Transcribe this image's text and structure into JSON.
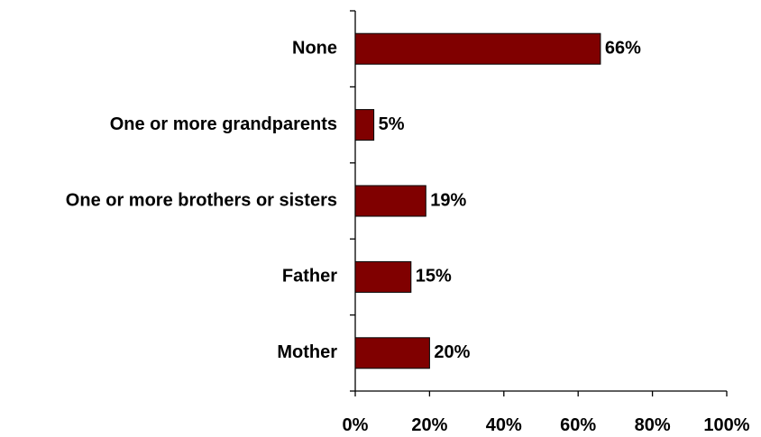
{
  "chart_data": {
    "type": "bar",
    "orientation": "horizontal",
    "categories": [
      "None",
      "One or more grandparents",
      "One or more brothers or sisters",
      "Father",
      "Mother"
    ],
    "values": [
      66,
      5,
      19,
      15,
      20
    ],
    "data_labels": [
      "66%",
      "5%",
      "19%",
      "15%",
      "20%"
    ],
    "title": "",
    "xlabel": "",
    "ylabel": "",
    "xlim": [
      0,
      100
    ],
    "x_ticks": [
      0,
      20,
      40,
      60,
      80,
      100
    ],
    "x_tick_labels": [
      "0%",
      "20%",
      "40%",
      "60%",
      "80%",
      "100%"
    ],
    "grid": false,
    "legend": "none",
    "colors": {
      "bar": "#800000"
    }
  }
}
